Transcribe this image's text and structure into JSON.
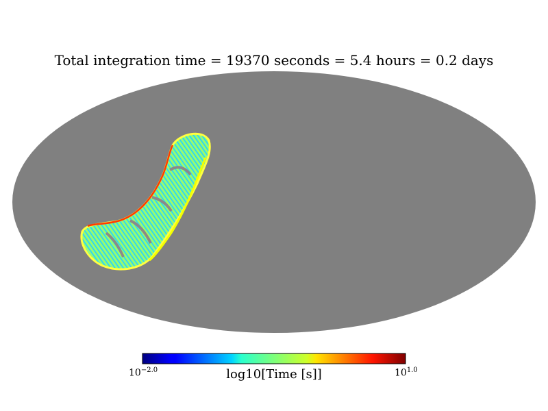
{
  "chart_data": {
    "type": "heatmap",
    "projection": "mollweide",
    "title": "Total integration time = 19370 seconds = 5.4 hours = 0.2 days",
    "colorbar": {
      "label": "log10[Time [s]]",
      "min_label_base": "10",
      "min_label_exp": "−2.0",
      "max_label_base": "10",
      "max_label_exp": "1.0",
      "range": [
        -2.0,
        1.0
      ],
      "colormap": "jet"
    },
    "background_color": "#808080"
  }
}
